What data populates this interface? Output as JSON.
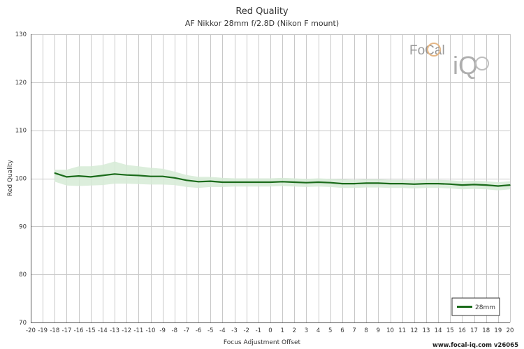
{
  "chart_data": {
    "type": "line",
    "title": "Red Quality",
    "subtitle": "AF Nikkor 28mm f/2.8D (Nikon F mount)",
    "xlabel": "Focus Adjustment Offset",
    "ylabel": "Red Quality",
    "xlim": [
      -20,
      20
    ],
    "ylim": [
      70,
      130
    ],
    "x_ticks": [
      -20,
      -19,
      -18,
      -17,
      -16,
      -15,
      -14,
      -13,
      -12,
      -11,
      -10,
      -9,
      -8,
      -7,
      -6,
      -5,
      -4,
      -3,
      -2,
      -1,
      0,
      1,
      2,
      3,
      4,
      5,
      6,
      7,
      8,
      9,
      10,
      11,
      12,
      13,
      14,
      15,
      16,
      17,
      18,
      19,
      20
    ],
    "y_ticks": [
      70,
      80,
      90,
      100,
      110,
      120,
      130
    ],
    "grid": true,
    "legend_position": "bottom-right",
    "series": [
      {
        "name": "28mm",
        "color": "#1a6b1a",
        "band_color": "#d6ebd6",
        "x": [
          -18,
          -17,
          -16,
          -15,
          -14,
          -13,
          -12,
          -11,
          -10,
          -9,
          -8,
          -7,
          -6,
          -5,
          -4,
          -3,
          -2,
          -1,
          0,
          1,
          2,
          3,
          4,
          5,
          6,
          7,
          8,
          9,
          10,
          11,
          12,
          13,
          14,
          15,
          16,
          17,
          18,
          19,
          20
        ],
        "values": [
          101.1,
          100.3,
          100.5,
          100.3,
          100.6,
          100.9,
          100.7,
          100.6,
          100.4,
          100.4,
          100.1,
          99.6,
          99.3,
          99.4,
          99.2,
          99.2,
          99.2,
          99.2,
          99.2,
          99.3,
          99.2,
          99.1,
          99.2,
          99.1,
          98.9,
          98.9,
          99.0,
          99.0,
          98.9,
          98.9,
          98.8,
          98.9,
          98.9,
          98.8,
          98.6,
          98.7,
          98.6,
          98.4,
          98.6
        ],
        "upper": [
          101.8,
          101.8,
          102.5,
          102.5,
          102.8,
          103.5,
          102.8,
          102.5,
          102.2,
          102.0,
          101.4,
          100.7,
          100.3,
          100.3,
          100.1,
          100.0,
          100.0,
          100.0,
          100.0,
          100.1,
          100.0,
          99.9,
          100.0,
          99.9,
          99.8,
          99.7,
          99.8,
          99.8,
          99.7,
          99.7,
          99.6,
          99.7,
          99.7,
          99.6,
          99.4,
          99.5,
          99.4,
          99.2,
          99.4
        ],
        "lower": [
          99.3,
          98.5,
          98.4,
          98.5,
          98.6,
          98.9,
          98.9,
          98.8,
          98.7,
          98.7,
          98.6,
          98.2,
          98.0,
          98.2,
          98.2,
          98.3,
          98.3,
          98.3,
          98.3,
          98.4,
          98.3,
          98.2,
          98.3,
          98.2,
          98.0,
          98.0,
          98.1,
          98.1,
          98.0,
          98.0,
          97.9,
          98.0,
          98.0,
          97.9,
          97.7,
          97.8,
          97.7,
          97.5,
          97.7
        ]
      }
    ]
  },
  "watermark": {
    "brand_top": "FoCal",
    "brand_bottom": "iQ"
  },
  "footer": {
    "text": "www.focal-iq.com  v26065"
  }
}
